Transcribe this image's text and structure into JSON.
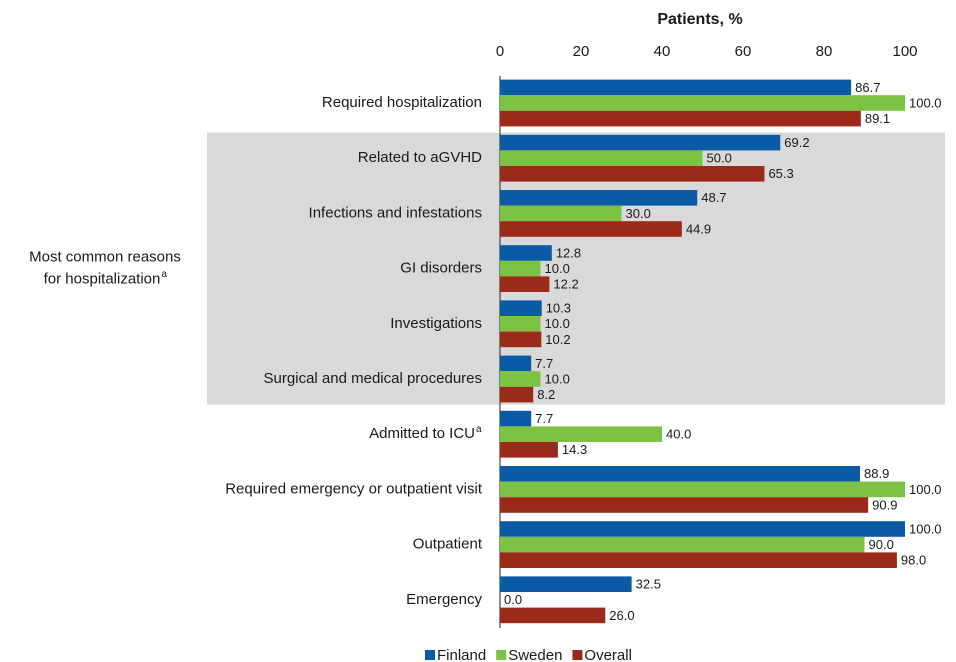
{
  "chart_data": {
    "type": "hbar",
    "title": "Patients, %",
    "categories": [
      "Required hospitalization",
      "Related to aGVHD",
      "Infections and infestations",
      "GI disorders",
      "Investigations",
      "Surgical and medical procedures",
      "Admitted to ICU",
      "Required emergency or outpatient visit",
      "Outpatient",
      "Emergency"
    ],
    "category_superscripts": [
      null,
      null,
      null,
      null,
      null,
      null,
      "a",
      null,
      null,
      null
    ],
    "group": {
      "label_lines": [
        "Most common reasons",
        "for hospitalization"
      ],
      "superscript": "a",
      "first": 1,
      "last": 5
    },
    "series": [
      {
        "name": "Finland",
        "color": "#0b5aa6",
        "values": [
          86.7,
          69.2,
          48.7,
          12.8,
          10.3,
          7.7,
          7.7,
          88.9,
          100.0,
          32.5
        ],
        "value_labels": [
          "86.7",
          "69.2",
          "48.7",
          "12.8",
          "10.3",
          "7.7",
          "7.7",
          "88.9",
          "100.0",
          "32.5"
        ]
      },
      {
        "name": "Sweden",
        "color": "#7dc242",
        "values": [
          100.0,
          50.0,
          30.0,
          10.0,
          10.0,
          10.0,
          40.0,
          100.0,
          90.0,
          0.0
        ],
        "value_labels": [
          "100.0",
          "50.0",
          "30.0",
          "10.0",
          "10.0",
          "10.0",
          "40.0",
          "100.0",
          "90.0",
          "0.0"
        ]
      },
      {
        "name": "Overall",
        "color": "#9c2a1a",
        "values": [
          89.1,
          65.3,
          44.9,
          12.2,
          10.2,
          8.2,
          14.3,
          90.9,
          98.0,
          26.0
        ],
        "value_labels": [
          "89.1",
          "65.3",
          "44.9",
          "12.2",
          "10.2",
          "8.2",
          "14.3",
          "90.9",
          "98.0",
          "26.0"
        ]
      }
    ],
    "xlim": [
      0,
      110
    ],
    "xticks": [
      0,
      20,
      40,
      60,
      80,
      100
    ],
    "legend": "bottom"
  }
}
